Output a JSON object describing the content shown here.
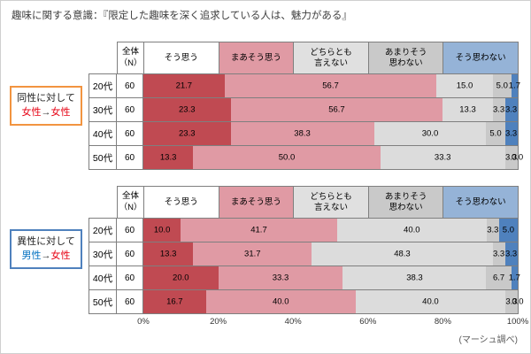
{
  "title": "趣味に関する意識：『限定した趣味を深く追求している人は、魅力がある』",
  "source_note": "(マーシュ調べ)",
  "x_axis": {
    "ticks": [
      "0%",
      "20%",
      "40%",
      "60%",
      "80%",
      "100%"
    ]
  },
  "legend": {
    "n_header": "全体\n（N）",
    "options": [
      {
        "key": "agree",
        "label": "そう思う",
        "header_text": "そう思う",
        "header_bg": "#ffffff",
        "bar_color": "#c04a52"
      },
      {
        "key": "somewhat-agree",
        "label": "まあそう思う",
        "header_text": "まあそう思う",
        "header_bg": "#e09aa4",
        "bar_color": "#e09aa4"
      },
      {
        "key": "neutral",
        "label": "どちらとも言えない",
        "header_text": "どちらとも\n言えない",
        "header_bg": "#e0e0e0",
        "bar_color": "#dcdcdc"
      },
      {
        "key": "somewhat-disagree",
        "label": "あまりそう思わない",
        "header_text": "あまりそう\n思わない",
        "header_bg": "#c9c9c9",
        "bar_color": "#c9c9c9"
      },
      {
        "key": "disagree",
        "label": "そう思わない",
        "header_text": "そう思わない",
        "header_bg": "#95b3d7",
        "bar_color": "#4f81bd"
      }
    ]
  },
  "chart_data": [
    {
      "type": "bar",
      "stacked": true,
      "orientation": "horizontal",
      "unit": "%",
      "xlim": [
        0,
        100
      ],
      "group": {
        "border": "#f29440",
        "line1": "同性に対して",
        "line2_parts": [
          {
            "text": "女性",
            "color": "#e60012"
          },
          {
            "text": "→",
            "color": "#333333"
          },
          {
            "text": "女性",
            "color": "#e60012"
          }
        ]
      },
      "categories": [
        "20代",
        "30代",
        "40代",
        "50代"
      ],
      "n_values": [
        60,
        60,
        60,
        60
      ],
      "series": [
        {
          "name": "そう思う",
          "values": [
            21.7,
            23.3,
            23.3,
            13.3
          ]
        },
        {
          "name": "まあそう思う",
          "values": [
            56.7,
            56.7,
            38.3,
            50.0
          ]
        },
        {
          "name": "どちらとも言えない",
          "values": [
            15.0,
            13.3,
            30.0,
            33.3
          ]
        },
        {
          "name": "あまりそう思わない",
          "values": [
            5.0,
            3.3,
            5.0,
            3.3
          ]
        },
        {
          "name": "そう思わない",
          "values": [
            1.7,
            3.3,
            3.3,
            0.0
          ]
        }
      ]
    },
    {
      "type": "bar",
      "stacked": true,
      "orientation": "horizontal",
      "unit": "%",
      "xlim": [
        0,
        100
      ],
      "group": {
        "border": "#4f81bd",
        "line1": "異性に対して",
        "line2_parts": [
          {
            "text": "男性",
            "color": "#0070c0"
          },
          {
            "text": "→",
            "color": "#333333"
          },
          {
            "text": "女性",
            "color": "#e60012"
          }
        ]
      },
      "categories": [
        "20代",
        "30代",
        "40代",
        "50代"
      ],
      "n_values": [
        60,
        60,
        60,
        60
      ],
      "series": [
        {
          "name": "そう思う",
          "values": [
            10.0,
            13.3,
            20.0,
            16.7
          ]
        },
        {
          "name": "まあそう思う",
          "values": [
            41.7,
            31.7,
            33.3,
            40.0
          ]
        },
        {
          "name": "どちらとも言えない",
          "values": [
            40.0,
            48.3,
            38.3,
            40.0
          ]
        },
        {
          "name": "あまりそう思わない",
          "values": [
            3.3,
            3.3,
            6.7,
            3.3
          ]
        },
        {
          "name": "そう思わない",
          "values": [
            5.0,
            3.3,
            1.7,
            0.0
          ]
        }
      ]
    }
  ]
}
